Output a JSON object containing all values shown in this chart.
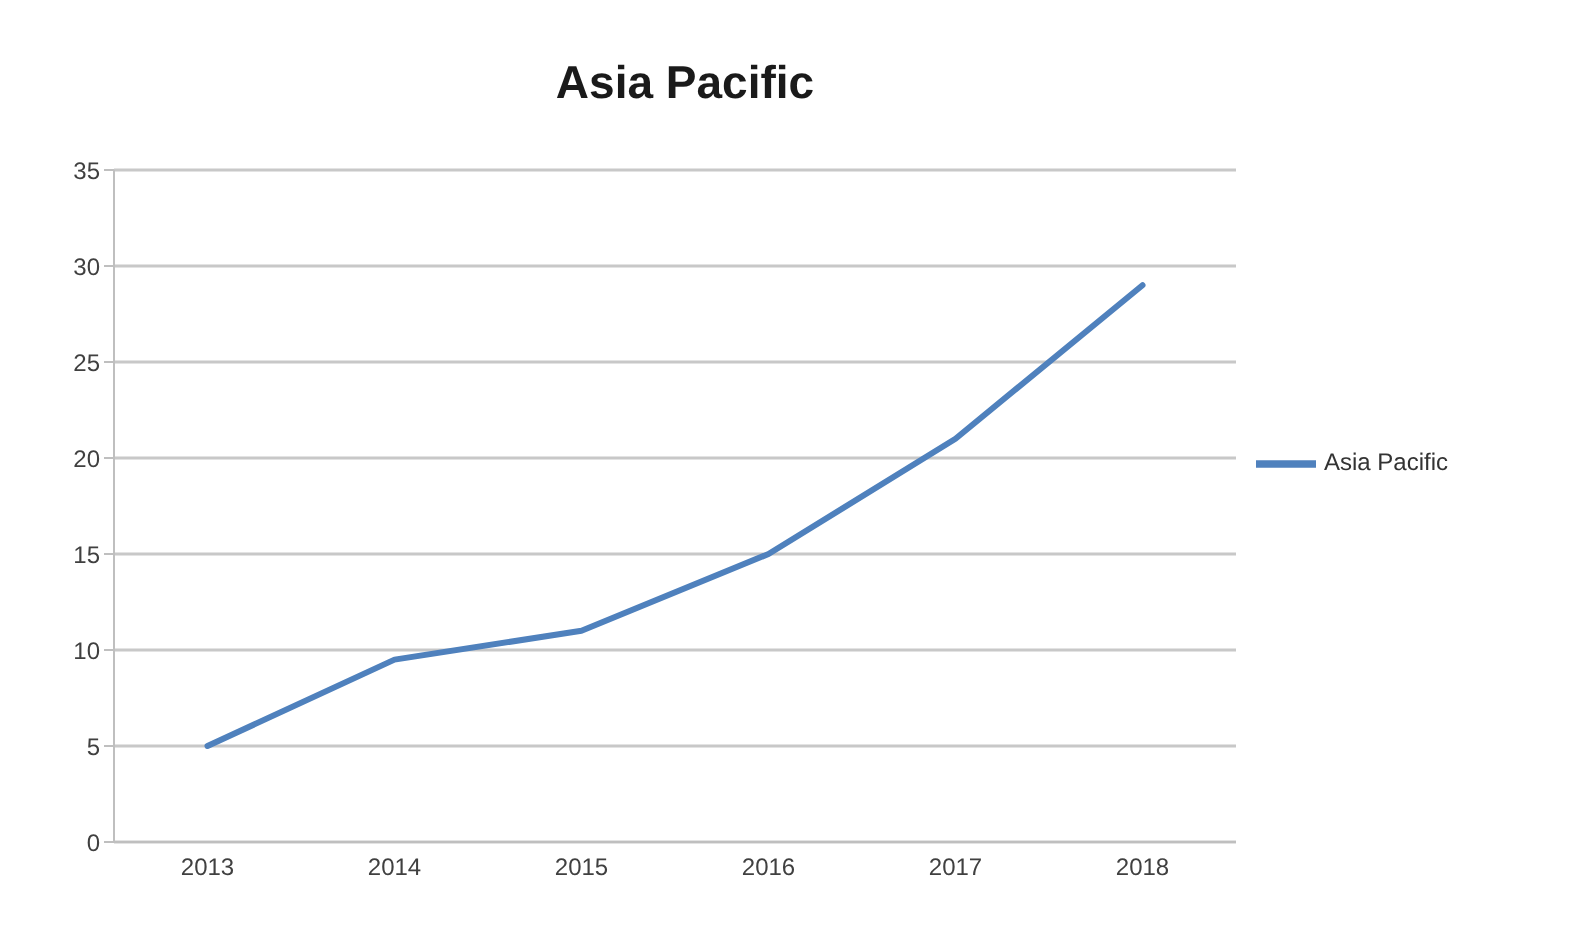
{
  "chart_data": {
    "type": "line",
    "title": "Asia Pacific",
    "categories": [
      "2013",
      "2014",
      "2015",
      "2016",
      "2017",
      "2018"
    ],
    "series": [
      {
        "name": "Asia Pacific",
        "color": "#4f81bd",
        "values": [
          5,
          9.5,
          11,
          15,
          21,
          29
        ]
      }
    ],
    "ylim": [
      0,
      35
    ],
    "yticks": [
      0,
      5,
      10,
      15,
      20,
      25,
      30,
      35
    ],
    "grid": "y",
    "legend": "right",
    "marker": "none",
    "line_style": "solid"
  }
}
